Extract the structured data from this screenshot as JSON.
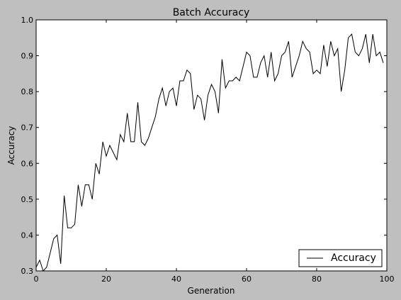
{
  "chart_data": {
    "type": "line",
    "title": "Batch Accuracy",
    "xlabel": "Generation",
    "ylabel": "Accuracy",
    "xlim": [
      0,
      100
    ],
    "ylim": [
      0.3,
      1.0
    ],
    "xticks": [
      0,
      20,
      40,
      60,
      80,
      100
    ],
    "xtick_labels": [
      "0",
      "20",
      "40",
      "60",
      "80",
      "100"
    ],
    "yticks": [
      0.3,
      0.4,
      0.5,
      0.6,
      0.7,
      0.8,
      0.9,
      1.0
    ],
    "ytick_labels": [
      "0.3",
      "0.4",
      "0.5",
      "0.6",
      "0.7",
      "0.8",
      "0.9",
      "1.0"
    ],
    "grid": false,
    "legend_position": "bottom-right",
    "series": [
      {
        "name": "Accuracy",
        "color": "#000000",
        "x": [
          0,
          1,
          2,
          3,
          4,
          5,
          6,
          7,
          8,
          9,
          10,
          11,
          12,
          13,
          14,
          15,
          16,
          17,
          18,
          19,
          20,
          21,
          22,
          23,
          24,
          25,
          26,
          27,
          28,
          29,
          30,
          31,
          32,
          33,
          34,
          35,
          36,
          37,
          38,
          39,
          40,
          41,
          42,
          43,
          44,
          45,
          46,
          47,
          48,
          49,
          50,
          51,
          52,
          53,
          54,
          55,
          56,
          57,
          58,
          59,
          60,
          61,
          62,
          63,
          64,
          65,
          66,
          67,
          68,
          69,
          70,
          71,
          72,
          73,
          74,
          75,
          76,
          77,
          78,
          79,
          80,
          81,
          82,
          83,
          84,
          85,
          86,
          87,
          88,
          89,
          90,
          91,
          92,
          93,
          94,
          95,
          96,
          97,
          98,
          99
        ],
        "values": [
          0.31,
          0.33,
          0.3,
          0.31,
          0.35,
          0.39,
          0.4,
          0.32,
          0.51,
          0.42,
          0.42,
          0.43,
          0.54,
          0.48,
          0.54,
          0.54,
          0.5,
          0.6,
          0.57,
          0.66,
          0.62,
          0.65,
          0.63,
          0.61,
          0.68,
          0.66,
          0.74,
          0.66,
          0.66,
          0.77,
          0.66,
          0.65,
          0.67,
          0.7,
          0.73,
          0.78,
          0.81,
          0.76,
          0.8,
          0.81,
          0.76,
          0.83,
          0.83,
          0.86,
          0.85,
          0.75,
          0.79,
          0.78,
          0.72,
          0.79,
          0.82,
          0.8,
          0.74,
          0.89,
          0.81,
          0.83,
          0.83,
          0.84,
          0.83,
          0.87,
          0.91,
          0.9,
          0.84,
          0.84,
          0.88,
          0.9,
          0.84,
          0.91,
          0.83,
          0.85,
          0.9,
          0.91,
          0.94,
          0.84,
          0.87,
          0.9,
          0.94,
          0.92,
          0.91,
          0.85,
          0.86,
          0.85,
          0.93,
          0.87,
          0.94,
          0.9,
          0.92,
          0.8,
          0.86,
          0.95,
          0.96,
          0.91,
          0.9,
          0.92,
          0.96,
          0.88,
          0.96,
          0.9,
          0.91,
          0.88
        ]
      }
    ]
  }
}
